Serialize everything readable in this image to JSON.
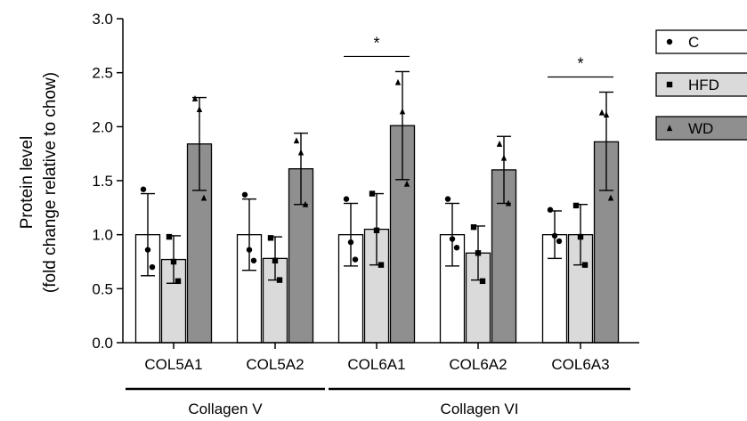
{
  "chart_data": {
    "type": "bar",
    "ylabel_line1": "Protein level",
    "ylabel_line2": "(fold change relative to chow)",
    "ylim": [
      0,
      3.0
    ],
    "yticks": [
      "0.0",
      "0.5",
      "1.0",
      "1.5",
      "2.0",
      "2.5",
      "3.0"
    ],
    "ytick_values": [
      0,
      0.5,
      1.0,
      1.5,
      2.0,
      2.5,
      3.0
    ],
    "categories": [
      "COL5A1",
      "COL5A2",
      "COL6A1",
      "COL6A2",
      "COL6A3"
    ],
    "groups": [
      {
        "label": "Collagen V",
        "categories": [
          "COL5A1",
          "COL5A2"
        ]
      },
      {
        "label": "Collagen VI",
        "categories": [
          "COL6A1",
          "COL6A2",
          "COL6A3"
        ]
      }
    ],
    "legend_position": "right",
    "series": [
      {
        "name": "C",
        "marker": "circle",
        "color": "#ffffff",
        "values": [
          1.0,
          1.0,
          1.0,
          1.0,
          1.0
        ],
        "err_low": [
          0.62,
          0.67,
          0.71,
          0.71,
          0.78
        ],
        "err_high": [
          1.38,
          1.33,
          1.29,
          1.29,
          1.22
        ],
        "points": [
          [
            1.42,
            0.86,
            0.7
          ],
          [
            1.37,
            0.86,
            0.76
          ],
          [
            1.33,
            0.93,
            0.77
          ],
          [
            1.33,
            0.96,
            0.88
          ],
          [
            1.23,
            0.99,
            0.94
          ]
        ]
      },
      {
        "name": "HFD",
        "marker": "square",
        "color": "#dadada",
        "values": [
          0.77,
          0.78,
          1.05,
          0.83,
          1.0
        ],
        "err_low": [
          0.55,
          0.58,
          0.72,
          0.58,
          0.72
        ],
        "err_high": [
          0.99,
          0.98,
          1.38,
          1.08,
          1.28
        ],
        "points": [
          [
            0.98,
            0.75,
            0.57
          ],
          [
            0.97,
            0.76,
            0.58
          ],
          [
            1.38,
            1.04,
            0.72
          ],
          [
            1.07,
            0.83,
            0.57
          ],
          [
            1.27,
            0.98,
            0.72
          ]
        ]
      },
      {
        "name": "WD",
        "marker": "triangle",
        "color": "#8f8f8f",
        "values": [
          1.84,
          1.61,
          2.01,
          1.6,
          1.86
        ],
        "err_low": [
          1.41,
          1.28,
          1.51,
          1.29,
          1.41
        ],
        "err_high": [
          2.27,
          1.94,
          2.51,
          1.91,
          2.32
        ],
        "points": [
          [
            2.26,
            2.16,
            1.34
          ],
          [
            1.87,
            1.76,
            1.28
          ],
          [
            2.41,
            2.14,
            1.47
          ],
          [
            1.84,
            1.71,
            1.29
          ],
          [
            2.13,
            2.11,
            1.34
          ]
        ]
      }
    ],
    "significance": [
      {
        "category": "COL6A1",
        "label": "*"
      },
      {
        "category": "COL6A3",
        "label": "*"
      }
    ]
  }
}
